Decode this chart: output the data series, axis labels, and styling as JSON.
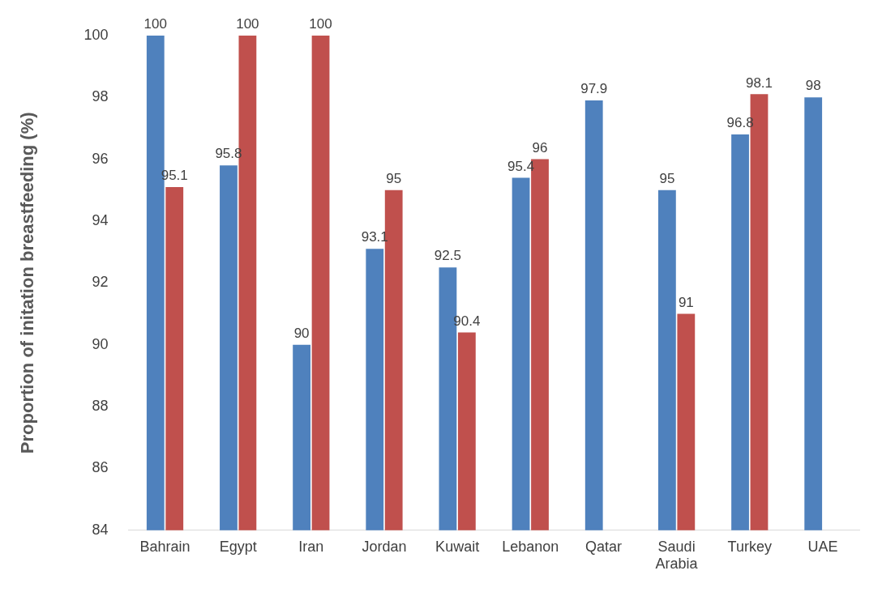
{
  "chart_data": {
    "type": "bar",
    "ylabel": "Proportion of initation breastfeeding (%)",
    "categories": [
      "Bahrain",
      "Egypt",
      "Iran",
      "Jordan",
      "Kuwait",
      "Lebanon",
      "Qatar",
      "Saudi Arabia",
      "Turkey",
      "UAE"
    ],
    "series": [
      {
        "color": "#4f81bd",
        "values": [
          100,
          95.8,
          90,
          93.1,
          92.5,
          95.4,
          97.9,
          95,
          96.8,
          98
        ]
      },
      {
        "color": "#c0504d",
        "values": [
          95.1,
          100,
          100,
          95,
          90.4,
          96,
          null,
          91,
          98.1,
          null
        ]
      }
    ],
    "ylim": [
      84,
      100
    ],
    "yticks": [
      84,
      86,
      88,
      90,
      92,
      94,
      96,
      98,
      100
    ],
    "grid": false,
    "legend": false,
    "data_labels": true
  }
}
